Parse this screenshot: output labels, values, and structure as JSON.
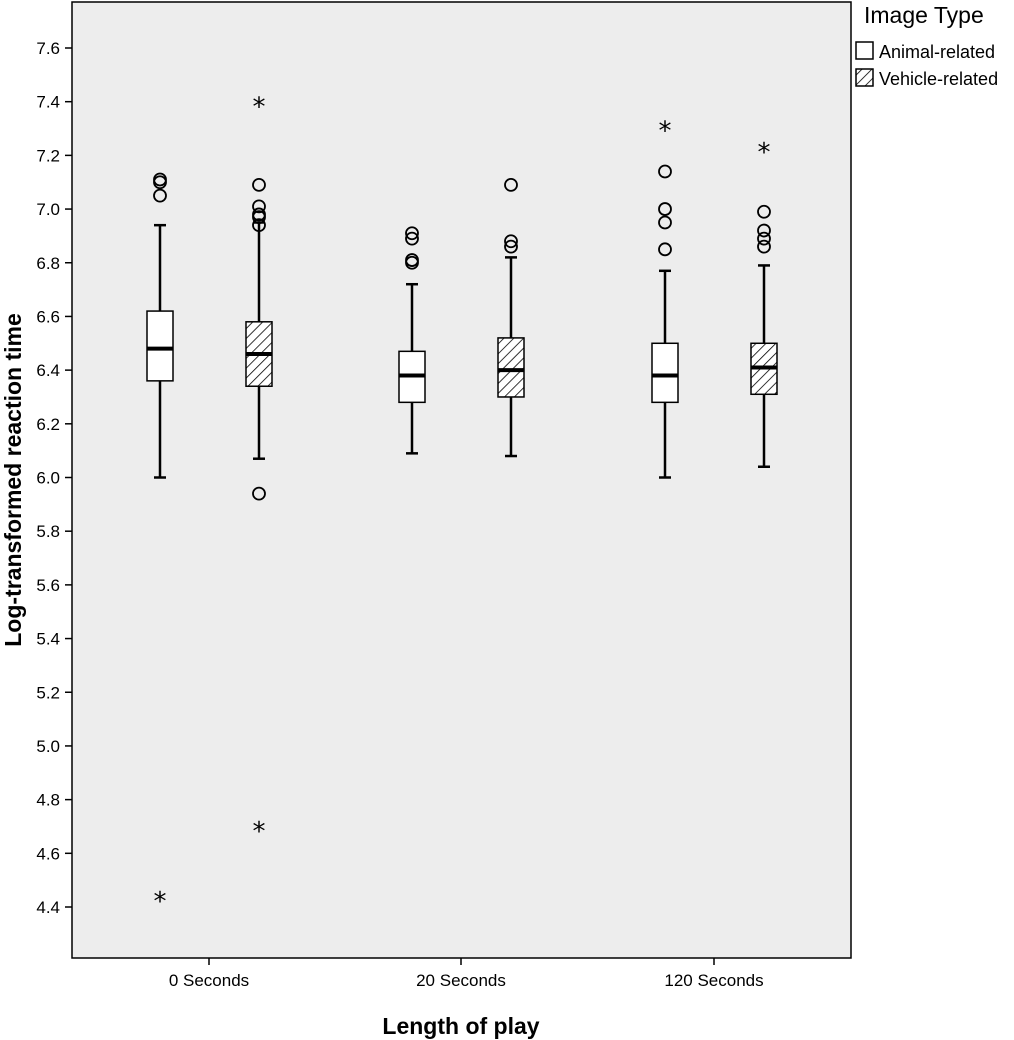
{
  "chart_data": {
    "type": "boxplot",
    "xlabel": "Length of play",
    "ylabel": "Log-transformed reaction time",
    "ylim": [
      4.25,
      7.78
    ],
    "yticks": [
      4.4,
      4.6,
      4.8,
      5.0,
      5.2,
      5.4,
      5.6,
      5.8,
      6.0,
      6.2,
      6.4,
      6.6,
      6.8,
      7.0,
      7.2,
      7.4,
      7.6
    ],
    "categories": [
      "0 Seconds",
      "20 Seconds",
      "120 Seconds"
    ],
    "legend": {
      "title": "Image Type",
      "position": "right-top"
    },
    "background": "#ededed",
    "series": [
      {
        "name": "Animal-related",
        "fill": "plain",
        "boxes": [
          {
            "whisker_low": 6.0,
            "q1": 6.36,
            "median": 6.48,
            "q3": 6.62,
            "whisker_high": 6.94,
            "outliers": [
              7.05,
              7.1,
              7.11
            ],
            "extremes": [
              4.43
            ]
          },
          {
            "whisker_low": 6.09,
            "q1": 6.28,
            "median": 6.38,
            "q3": 6.47,
            "whisker_high": 6.72,
            "outliers": [
              6.8,
              6.81,
              6.89,
              6.91
            ],
            "extremes": []
          },
          {
            "whisker_low": 6.0,
            "q1": 6.28,
            "median": 6.38,
            "q3": 6.5,
            "whisker_high": 6.77,
            "outliers": [
              6.85,
              6.95,
              7.0,
              7.14
            ],
            "extremes": [
              7.3
            ]
          }
        ]
      },
      {
        "name": "Vehicle-related",
        "fill": "hatched",
        "boxes": [
          {
            "whisker_low": 6.07,
            "q1": 6.34,
            "median": 6.46,
            "q3": 6.58,
            "whisker_high": 6.95,
            "outliers": [
              5.94,
              6.94,
              6.97,
              6.98,
              7.01,
              7.09
            ],
            "extremes": [
              4.69,
              7.39
            ]
          },
          {
            "whisker_low": 6.08,
            "q1": 6.3,
            "median": 6.4,
            "q3": 6.52,
            "whisker_high": 6.82,
            "outliers": [
              6.86,
              6.88,
              7.09
            ],
            "extremes": []
          },
          {
            "whisker_low": 6.04,
            "q1": 6.31,
            "median": 6.41,
            "q3": 6.5,
            "whisker_high": 6.79,
            "outliers": [
              6.86,
              6.89,
              6.92,
              6.99
            ],
            "extremes": [
              7.22
            ]
          }
        ]
      }
    ]
  }
}
